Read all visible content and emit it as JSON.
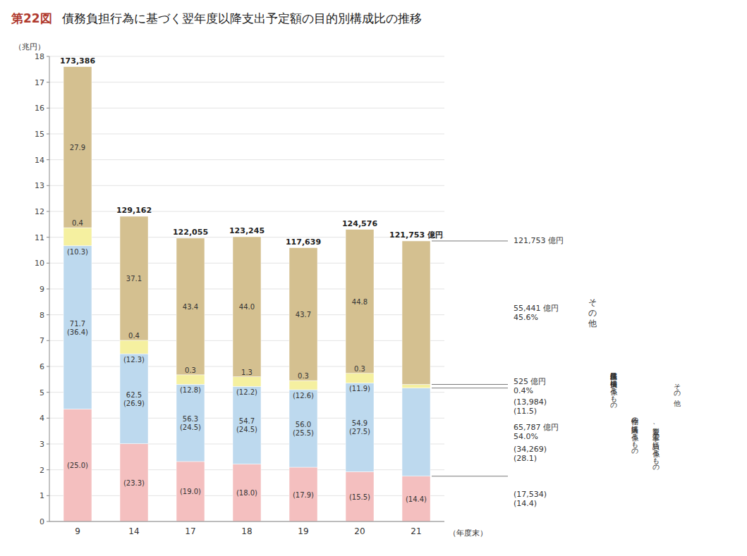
{
  "chart_data": {
    "type": "bar",
    "stacked": true,
    "figure_label": "第22図",
    "title": "債務負担行為に基づく翌年度以降支出予定額の目的別構成比の推移",
    "ylabel": "（兆円）",
    "xlabel": "（年度末）",
    "categories": [
      "9",
      "14",
      "17",
      "18",
      "19",
      "20",
      "21"
    ],
    "series": [
      {
        "color": "#F4BFBF",
        "values": [
          4.35,
          3.01,
          2.32,
          2.22,
          2.1,
          1.93,
          1.752
        ],
        "labels": [
          "(25.0)",
          "(23.3)",
          "(19.0)",
          "(18.0)",
          "(17.9)",
          "(15.5)",
          "(14.4)"
        ]
      },
      {
        "color": "#BDD9EE",
        "values": [
          6.32,
          3.48,
          2.99,
          3.01,
          3.0,
          3.43,
          3.412
        ],
        "labels": [
          "71.7\n(36.4)",
          "62.5\n(26.9)",
          "56.3\n(24.5)",
          "54.7\n(24.5)",
          "56.0\n(25.5)",
          "54.9\n(27.5)",
          null
        ]
      },
      {
        "color": "#F5F0A0",
        "values": [
          0.7,
          0.52,
          0.366,
          0.369,
          0.352,
          0.373,
          0.14
        ],
        "labels": [
          "0.4\n(10.3)",
          "0.4\n(12.3)",
          "0.3\n(12.8)",
          "1.3\n(12.2)",
          "0.3\n(12.6)",
          "0.3\n(11.9)",
          null
        ]
      },
      {
        "color": "#D4C090",
        "values": [
          6.23,
          4.8,
          5.29,
          5.42,
          5.14,
          5.57,
          5.552
        ],
        "labels": [
          "27.9",
          "37.1",
          "43.4",
          "44.0",
          "43.7",
          "44.8",
          null
        ]
      }
    ],
    "total_labels": [
      "173,386",
      "129,162",
      "122,055",
      "123,245",
      "117,639",
      "124,576",
      "121,753 億円"
    ],
    "ylim": [
      0,
      18
    ],
    "yticks": [
      0,
      1,
      2,
      3,
      4,
      5,
      6,
      7,
      8,
      9,
      10,
      11,
      12,
      13,
      14,
      15,
      16,
      17,
      18
    ],
    "grid": true,
    "annotations": {
      "total_line": "121,753 億円",
      "tan_line1": "55,441 億円",
      "tan_line2": "45.6%",
      "yellow_line1": "525 億円",
      "yellow_line2": "0.4%",
      "blue_line1": "65,787 億円",
      "blue_line2": "54.0%",
      "blue_sub1": "(34,269)",
      "blue_sub2": "(28.1)",
      "other_sub1": "(13,984)",
      "other_sub2": "(11.5)",
      "pink_sub1": "(17,534)",
      "pink_sub2": "(14.4)",
      "tan_name": "そ\nの\n他",
      "yellow_name": "債務保証又は損失補償に係るもの",
      "blue_name": "物件の購入等に係るもの",
      "blue_sub_name": "製造、工事の請負に係るもの",
      "other_name": "その他"
    }
  }
}
